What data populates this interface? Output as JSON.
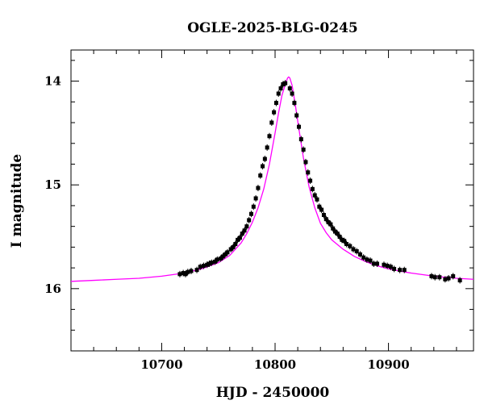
{
  "chart_data": {
    "type": "scatter",
    "title": "OGLE-2025-BLG-0245",
    "xlabel": "HJD - 2450000",
    "ylabel": "I magnitude",
    "xlim": [
      10620,
      10975
    ],
    "ylim": [
      16.6,
      13.7
    ],
    "y_inverted": true,
    "x_ticks": [
      10700,
      10800,
      10900
    ],
    "y_ticks": [
      14,
      15,
      16
    ],
    "grid": false,
    "colors": {
      "data": "#000000",
      "model": "#ff00ff",
      "axes": "#000000"
    },
    "series": [
      {
        "kind": "points",
        "x": [
          10716,
          10719,
          10721,
          10723,
          10726,
          10731,
          10734,
          10737,
          10740,
          10742,
          10744,
          10747,
          10749,
          10752,
          10754,
          10756,
          10758,
          10761,
          10763,
          10765,
          10767,
          10769,
          10771,
          10773,
          10775,
          10777,
          10779,
          10781,
          10783,
          10785,
          10787,
          10789,
          10791,
          10793,
          10795,
          10797,
          10799,
          10801,
          10803,
          10805,
          10807,
          10809,
          10813,
          10815,
          10817,
          10819,
          10821,
          10823,
          10825,
          10827,
          10829,
          10831,
          10833,
          10835,
          10837,
          10839,
          10841,
          10843,
          10845,
          10847,
          10849,
          10851,
          10853,
          10855,
          10857,
          10859,
          10861,
          10863,
          10866,
          10869,
          10872,
          10875,
          10878,
          10881,
          10884,
          10887,
          10890,
          10896,
          10899,
          10902,
          10905,
          10910,
          10914,
          10938,
          10941,
          10945,
          10950,
          10953,
          10957,
          10963
        ],
        "y": [
          15.86,
          15.85,
          15.86,
          15.84,
          15.83,
          15.82,
          15.79,
          15.78,
          15.77,
          15.76,
          15.75,
          15.74,
          15.72,
          15.71,
          15.69,
          15.67,
          15.65,
          15.62,
          15.6,
          15.57,
          15.53,
          15.51,
          15.47,
          15.44,
          15.4,
          15.34,
          15.28,
          15.21,
          15.13,
          15.03,
          14.91,
          14.82,
          14.75,
          14.64,
          14.53,
          14.4,
          14.3,
          14.21,
          14.12,
          14.07,
          14.03,
          14.02,
          14.07,
          14.12,
          14.21,
          14.33,
          14.44,
          14.56,
          14.66,
          14.78,
          14.88,
          14.96,
          15.04,
          15.1,
          15.14,
          15.21,
          15.24,
          15.29,
          15.33,
          15.36,
          15.38,
          15.42,
          15.45,
          15.47,
          15.5,
          15.53,
          15.54,
          15.57,
          15.59,
          15.62,
          15.64,
          15.67,
          15.7,
          15.72,
          15.73,
          15.76,
          15.76,
          15.77,
          15.78,
          15.79,
          15.81,
          15.82,
          15.82,
          15.88,
          15.89,
          15.89,
          15.91,
          15.9,
          15.88,
          15.92
        ]
      },
      {
        "kind": "model",
        "x": [
          10620,
          10640,
          10660,
          10680,
          10700,
          10720,
          10735,
          10750,
          10760,
          10770,
          10775,
          10780,
          10785,
          10790,
          10795,
          10800,
          10803,
          10806,
          10809,
          10811,
          10812,
          10813,
          10815,
          10818,
          10821,
          10825,
          10830,
          10835,
          10840,
          10845,
          10850,
          10860,
          10870,
          10880,
          10890,
          10900,
          10920,
          10940,
          10960,
          10975
        ],
        "y": [
          15.93,
          15.92,
          15.91,
          15.9,
          15.88,
          15.85,
          15.81,
          15.75,
          15.68,
          15.56,
          15.47,
          15.36,
          15.22,
          15.04,
          14.8,
          14.5,
          14.31,
          14.14,
          14.03,
          13.97,
          13.96,
          13.97,
          14.04,
          14.24,
          14.46,
          14.74,
          15.02,
          15.22,
          15.37,
          15.46,
          15.53,
          15.62,
          15.69,
          15.74,
          15.78,
          15.81,
          15.85,
          15.88,
          15.9,
          15.91
        ]
      }
    ]
  }
}
